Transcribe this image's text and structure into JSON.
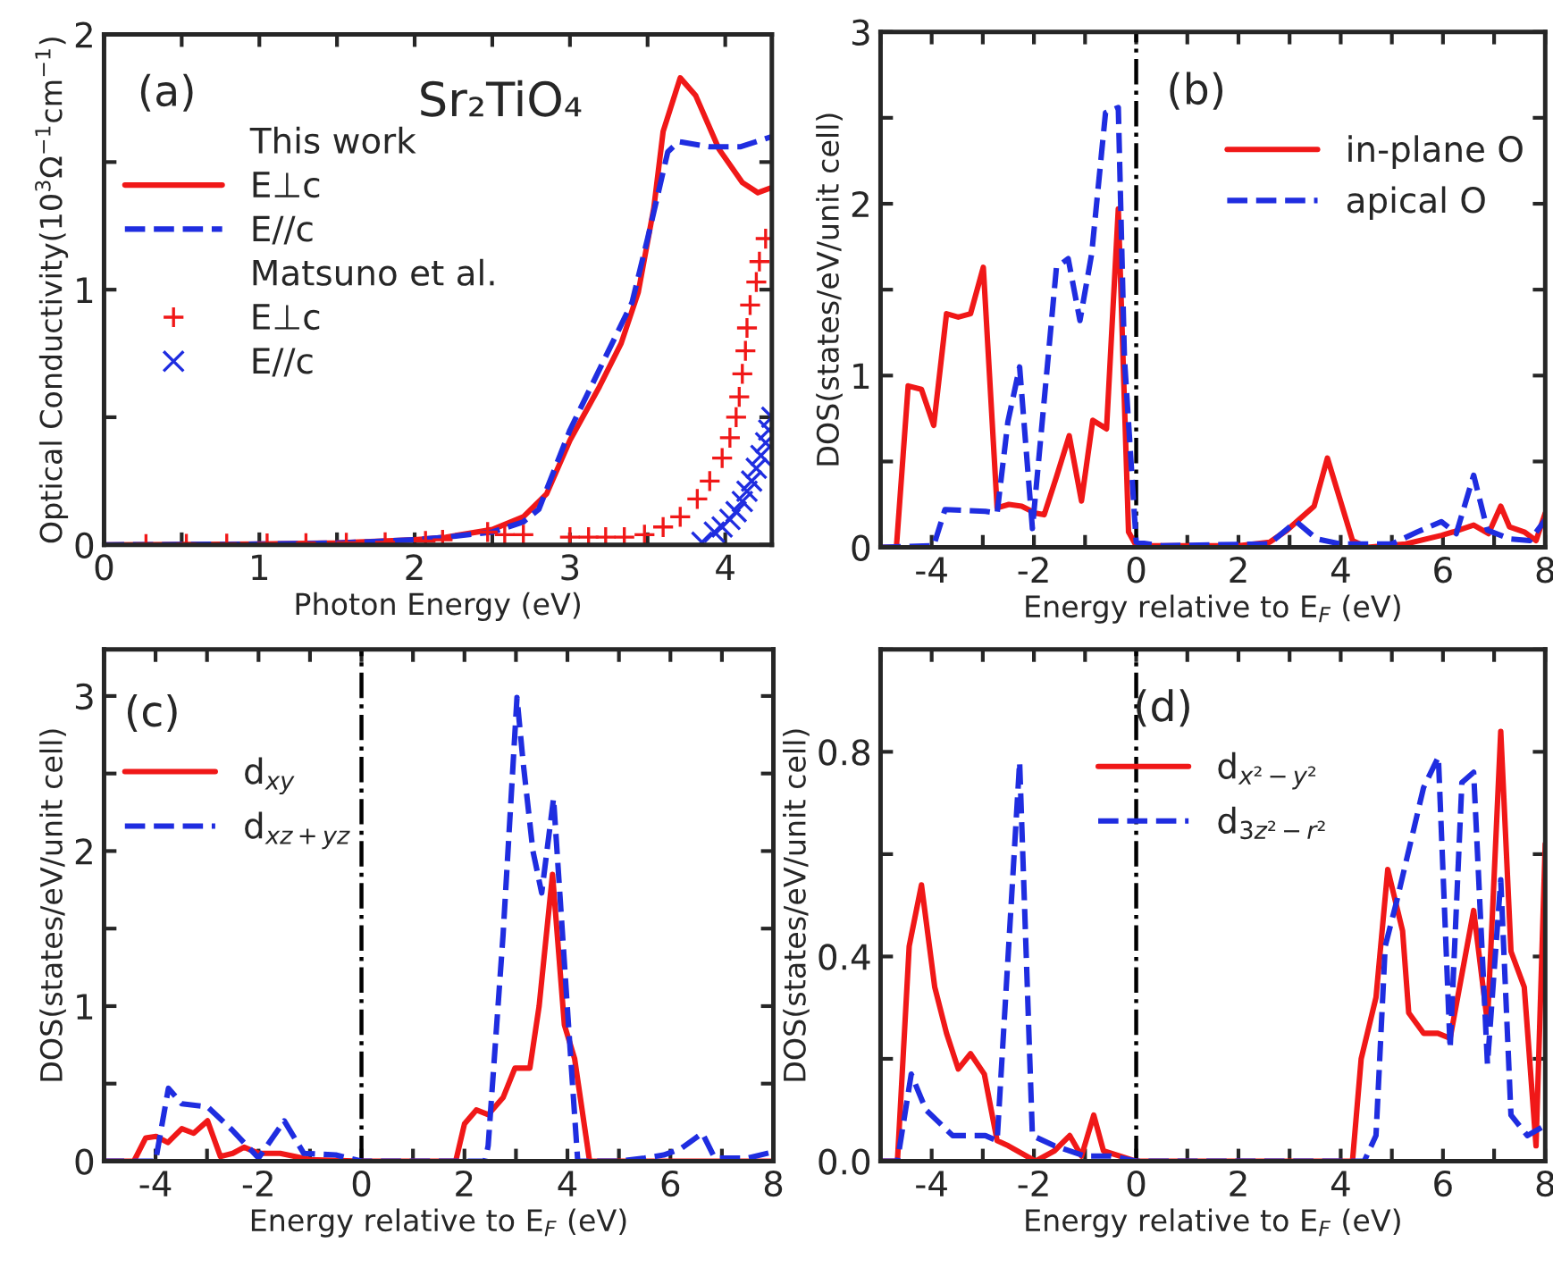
{
  "chart_data": [
    {
      "type": "line",
      "xlabel": "Photon Energy (eV)",
      "ylabel": "Optical Conductivity(10$^{3}$Ω$^{−1}$cm$^{−1}$)",
      "xlim": [
        0,
        4.3
      ],
      "ylim": [
        0,
        2
      ],
      "xticks": [
        0,
        {
          "value": 0.5,
          "label": null
        },
        1,
        {
          "value": 1.5,
          "label": null
        },
        2,
        {
          "value": 2.5,
          "label": null
        },
        3,
        {
          "value": 3.5,
          "label": null
        },
        4
      ],
      "yticks": [
        0,
        {
          "value": 0.5,
          "label": null
        },
        1,
        {
          "value": 1.5,
          "label": null
        },
        2
      ],
      "legend": "top left",
      "annotations": [
        "(a)",
        "Sr₂TiO₄",
        "This work",
        "Matsuno et al."
      ],
      "series": [
        {
          "name": "E⊥c",
          "type": "line",
          "color": "#f01818",
          "line_style": "solid",
          "x": [
            0,
            1,
            1.5,
            2,
            2.2,
            2.5,
            2.7,
            2.85,
            3.0,
            3.19,
            3.33,
            3.44,
            3.54,
            3.6,
            3.71,
            3.81,
            3.96,
            4.11,
            4.21,
            4.3
          ],
          "values": [
            0,
            0.003,
            0.008,
            0.02,
            0.03,
            0.06,
            0.11,
            0.2,
            0.41,
            0.62,
            0.79,
            0.99,
            1.32,
            1.62,
            1.83,
            1.76,
            1.55,
            1.42,
            1.38,
            1.4
          ]
        },
        {
          "name": "E//c",
          "type": "line",
          "color": "#1f2de0",
          "line_style": "dashed",
          "x": [
            0,
            1,
            1.5,
            2,
            2.2,
            2.5,
            2.7,
            2.8,
            3.0,
            3.2,
            3.4,
            3.5,
            3.63,
            3.7,
            3.9,
            4.1,
            4.3
          ],
          "values": [
            0,
            0.003,
            0.007,
            0.02,
            0.03,
            0.05,
            0.09,
            0.14,
            0.45,
            0.7,
            0.95,
            1.2,
            1.54,
            1.58,
            1.56,
            1.56,
            1.6
          ]
        },
        {
          "name": "E⊥c",
          "type": "scatter",
          "color": "#f01818",
          "marker": "plus",
          "x": [
            0.27,
            0.53,
            0.79,
            1.05,
            1.3,
            1.56,
            1.81,
            2.07,
            2.18,
            2.47,
            2.58,
            2.7,
            3.0,
            3.12,
            3.23,
            3.35,
            3.48,
            3.6,
            3.71,
            3.82,
            3.9,
            3.98,
            4.03,
            4.07,
            4.09,
            4.11,
            4.13,
            4.14,
            4.16,
            4.2,
            4.22,
            4.26
          ],
          "values": [
            0.003,
            0.004,
            0.005,
            0.006,
            0.007,
            0.008,
            0.01,
            0.015,
            0.02,
            0.05,
            0.04,
            0.04,
            0.03,
            0.03,
            0.03,
            0.03,
            0.04,
            0.07,
            0.11,
            0.18,
            0.25,
            0.34,
            0.42,
            0.5,
            0.58,
            0.67,
            0.76,
            0.85,
            0.94,
            1.03,
            1.11,
            1.2
          ]
        },
        {
          "name": "E//c",
          "type": "scatter",
          "color": "#1f2de0",
          "marker": "cross",
          "x": [
            3.85,
            3.93,
            3.98,
            4.03,
            4.07,
            4.11,
            4.14,
            4.17,
            4.2,
            4.23,
            4.26,
            4.28,
            4.3
          ],
          "values": [
            0.01,
            0.05,
            0.07,
            0.1,
            0.13,
            0.17,
            0.21,
            0.25,
            0.3,
            0.35,
            0.4,
            0.45,
            0.5
          ]
        }
      ]
    },
    {
      "type": "line",
      "xlabel": "Energy relative to E$_{F}$ (eV)",
      "ylabel": "DOS(states/eV/unit cell)",
      "xlim": [
        -5,
        8
      ],
      "ylim": [
        0,
        3
      ],
      "xticks": [
        {
          "value": -5,
          "label": null
        },
        -4,
        {
          "value": -3,
          "label": null
        },
        -2,
        {
          "value": -1,
          "label": null
        },
        0,
        {
          "value": 1,
          "label": null
        },
        2,
        {
          "value": 3,
          "label": null
        },
        4,
        {
          "value": 5,
          "label": null
        },
        6,
        {
          "value": 7,
          "label": null
        },
        8
      ],
      "yticks": [
        0,
        {
          "value": 0.5,
          "label": null
        },
        1,
        {
          "value": 1.5,
          "label": null
        },
        2,
        {
          "value": 2.5,
          "label": null
        },
        3
      ],
      "legend": "top right",
      "annotations": [
        "(b)"
      ],
      "ref_lines": [
        {
          "axis": "x",
          "value": 0,
          "color": "#000000",
          "line_style": "dashdot"
        }
      ],
      "series": [
        {
          "name": "in-plane O",
          "color": "#f01818",
          "line_style": "solid",
          "x": [
            -5,
            -4.69,
            -4.46,
            -4.2,
            -3.96,
            -3.71,
            -3.48,
            -3.24,
            -2.99,
            -2.72,
            -2.49,
            -2.24,
            -1.97,
            -1.8,
            -1.56,
            -1.31,
            -1.07,
            -0.85,
            -0.58,
            -0.35,
            -0.15,
            0,
            2,
            2.61,
            2.95,
            3.48,
            3.74,
            4.23,
            4.52,
            5.27,
            5.97,
            6.2,
            6.6,
            6.89,
            7.13,
            7.3,
            7.59,
            7.82,
            8
          ],
          "values": [
            0,
            0,
            0.94,
            0.92,
            0.71,
            1.36,
            1.34,
            1.36,
            1.63,
            0.23,
            0.25,
            0.24,
            0.2,
            0.19,
            0.41,
            0.65,
            0.27,
            0.74,
            0.69,
            1.97,
            0.09,
            0.01,
            0.01,
            0.03,
            0.1,
            0.24,
            0.52,
            0.04,
            0,
            0.02,
            0.07,
            0.09,
            0.13,
            0.08,
            0.24,
            0.12,
            0.09,
            0.04,
            0.2
          ]
        },
        {
          "name": "apical O",
          "color": "#1f2de0",
          "line_style": "dashed",
          "x": [
            -5,
            -3.96,
            -3.74,
            -2.95,
            -2.72,
            -2.51,
            -2.28,
            -2.03,
            -1.56,
            -1.33,
            -1.1,
            -0.87,
            -0.6,
            -0.35,
            -0.23,
            0,
            0.5,
            2.6,
            3.13,
            3.53,
            4.0,
            5.0,
            5.5,
            5.97,
            6.26,
            6.6,
            6.87,
            7.3,
            7.7,
            8
          ],
          "values": [
            0,
            0.01,
            0.22,
            0.21,
            0.2,
            0.73,
            1.05,
            0.11,
            1.63,
            1.68,
            1.32,
            1.71,
            2.53,
            2.56,
            1.1,
            0.03,
            0.01,
            0.02,
            0.15,
            0.05,
            0.02,
            0.02,
            0.09,
            0.15,
            0.08,
            0.42,
            0.1,
            0.05,
            0.04,
            0.16
          ]
        }
      ]
    },
    {
      "type": "line",
      "xlabel": "Energy relative to E$_{F}$ (eV)",
      "ylabel": "DOS(states/eV/unit cell)",
      "xlim": [
        -5,
        8
      ],
      "ylim": [
        0,
        3.3
      ],
      "xticks": [
        {
          "value": -5,
          "label": null
        },
        -4,
        {
          "value": -3,
          "label": null
        },
        -2,
        {
          "value": -1,
          "label": null
        },
        0,
        {
          "value": 1,
          "label": null
        },
        2,
        {
          "value": 3,
          "label": null
        },
        4,
        {
          "value": 5,
          "label": null
        },
        6,
        {
          "value": 7,
          "label": null
        },
        8
      ],
      "yticks": [
        0,
        {
          "value": 0.5,
          "label": null
        },
        1,
        {
          "value": 1.5,
          "label": null
        },
        2,
        {
          "value": 2.5,
          "label": null
        },
        3
      ],
      "legend": "top left",
      "annotations": [
        "(c)"
      ],
      "ref_lines": [
        {
          "axis": "x",
          "value": 0,
          "color": "#000000",
          "line_style": "dashdot"
        }
      ],
      "series": [
        {
          "name": "d$_{xy}$",
          "color": "#f01818",
          "line_style": "solid",
          "x": [
            -5,
            -4.42,
            -4.19,
            -3.99,
            -3.76,
            -3.49,
            -3.26,
            -2.99,
            -2.74,
            -2.5,
            -2.28,
            -1.99,
            -1.58,
            -1.0,
            0,
            1.83,
            2.0,
            2.23,
            2.46,
            2.75,
            2.98,
            3.27,
            3.45,
            3.71,
            3.94,
            4.14,
            4.43,
            8
          ],
          "values": [
            0,
            0,
            0.15,
            0.16,
            0.12,
            0.21,
            0.18,
            0.26,
            0.03,
            0.05,
            0.09,
            0.05,
            0.05,
            0.01,
            0,
            0,
            0.24,
            0.33,
            0.3,
            0.41,
            0.6,
            0.6,
            1.0,
            1.85,
            0.88,
            0.66,
            0,
            0
          ]
        },
        {
          "name": "d$_{xz+yz}$",
          "color": "#1f2de0",
          "line_style": "dashed",
          "x": [
            -5,
            -4.0,
            -3.75,
            -3.49,
            -2.99,
            -2.51,
            -2.0,
            -1.5,
            -1.12,
            -0.5,
            0,
            2.4,
            2.46,
            2.75,
            3.02,
            3.14,
            3.33,
            3.5,
            3.73,
            4.02,
            4.2,
            5.0,
            5.5,
            5.87,
            6.2,
            6.62,
            6.86,
            7.5,
            8
          ],
          "values": [
            0,
            0,
            0.47,
            0.37,
            0.35,
            0.2,
            0.02,
            0.26,
            0.05,
            0.04,
            0,
            0,
            0.1,
            1.46,
            2.99,
            2.57,
            2.0,
            1.73,
            2.34,
            0.88,
            0,
            0,
            0.02,
            0.04,
            0.08,
            0.18,
            0.02,
            0.02,
            0.06
          ]
        }
      ]
    },
    {
      "type": "line",
      "xlabel": "Energy relative to E$_{F}$ (eV)",
      "ylabel": "DOS(states/eV/unit cell)",
      "xlim": [
        -5,
        8
      ],
      "ylim": [
        0,
        1.0
      ],
      "xticks": [
        {
          "value": -5,
          "label": null
        },
        -4,
        {
          "value": -3,
          "label": null
        },
        -2,
        {
          "value": -1,
          "label": null
        },
        0,
        {
          "value": 1,
          "label": null
        },
        2,
        {
          "value": 3,
          "label": null
        },
        4,
        {
          "value": 5,
          "label": null
        },
        6,
        {
          "value": 7,
          "label": null
        },
        8
      ],
      "yticks": [
        {
          "value": 0,
          "label": "0.0"
        },
        {
          "value": 0.2,
          "label": null
        },
        0.4,
        {
          "value": 0.6,
          "label": null
        },
        0.8,
        {
          "value": 1.0,
          "label": null
        }
      ],
      "legend": "top",
      "annotations": [
        "(d)"
      ],
      "ref_lines": [
        {
          "axis": "x",
          "value": 0,
          "color": "#000000",
          "line_style": "dashdot"
        }
      ],
      "series": [
        {
          "name": "d$_{x²−y²}$",
          "color": "#f01818",
          "line_style": "solid",
          "x": [
            -5,
            -4.67,
            -4.44,
            -4.2,
            -3.94,
            -3.71,
            -3.48,
            -3.24,
            -2.97,
            -2.72,
            -2.5,
            -1.97,
            -1.6,
            -1.3,
            -1.07,
            -0.83,
            -0.64,
            0,
            4.23,
            4.4,
            4.69,
            4.92,
            5.21,
            5.33,
            5.62,
            5.9,
            6.14,
            6.6,
            6.87,
            7.13,
            7.33,
            7.59,
            7.82,
            8
          ],
          "values": [
            0,
            0,
            0.42,
            0.54,
            0.34,
            0.25,
            0.18,
            0.21,
            0.17,
            0.04,
            0.03,
            0,
            0.02,
            0.05,
            0.01,
            0.09,
            0.02,
            0,
            0,
            0.2,
            0.32,
            0.57,
            0.45,
            0.29,
            0.25,
            0.25,
            0.24,
            0.49,
            0.27,
            0.84,
            0.41,
            0.34,
            0.03,
            0.62
          ]
        },
        {
          "name": "d$_{3z²−r²}$",
          "color": "#1f2de0",
          "line_style": "dashed",
          "x": [
            -5,
            -4.67,
            -4.4,
            -4.11,
            -3.59,
            -2.95,
            -2.72,
            -2.28,
            -2.03,
            -1.6,
            -1.0,
            -0.5,
            0,
            4.46,
            4.69,
            4.87,
            5.1,
            5.62,
            5.91,
            6.14,
            6.37,
            6.6,
            6.87,
            7.13,
            7.33,
            7.65,
            8
          ],
          "values": [
            0,
            0,
            0.17,
            0.1,
            0.05,
            0.05,
            0.04,
            0.78,
            0.05,
            0.03,
            0.01,
            0.01,
            0,
            0,
            0.05,
            0.42,
            0.51,
            0.73,
            0.79,
            0.22,
            0.74,
            0.76,
            0.19,
            0.55,
            0.09,
            0.05,
            0.07
          ]
        }
      ]
    }
  ]
}
